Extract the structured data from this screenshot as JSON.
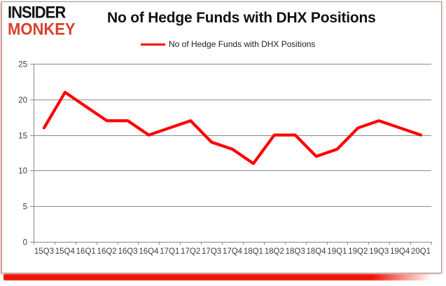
{
  "logo": {
    "line1": "INSIDER",
    "line2": "MONKEY"
  },
  "header": {
    "title": "No of Hedge Funds with DHX Positions"
  },
  "legend": {
    "label": "No of Hedge Funds with DHX Positions"
  },
  "chart_data": {
    "type": "line",
    "title": "No of Hedge Funds with DHX Positions",
    "categories": [
      "15Q3",
      "15Q4",
      "16Q1",
      "16Q2",
      "16Q3",
      "16Q4",
      "17Q1",
      "17Q2",
      "17Q3",
      "17Q4",
      "18Q1",
      "18Q2",
      "18Q3",
      "18Q4",
      "19Q1",
      "19Q2",
      "19Q3",
      "19Q4",
      "20Q1"
    ],
    "series": [
      {
        "name": "No of Hedge Funds with DHX Positions",
        "color": "#ff0000",
        "values": [
          16,
          21,
          19,
          17,
          17,
          15,
          16,
          17,
          14,
          13,
          11,
          15,
          15,
          12,
          13,
          16,
          17,
          16,
          15
        ]
      }
    ],
    "xlabel": "",
    "ylabel": "",
    "ylim": [
      0,
      25
    ],
    "yticks": [
      0,
      5,
      10,
      15,
      20,
      25
    ],
    "grid": true,
    "legend_position": "top"
  },
  "colors": {
    "line": "#ff0000",
    "grid": "#8a8a8a",
    "axis": "#8a8a8a",
    "tick_label": "#3f3f3f",
    "logo_black": "#131313",
    "logo_red": "#d8402a",
    "shadow_red": "#ef1405"
  }
}
